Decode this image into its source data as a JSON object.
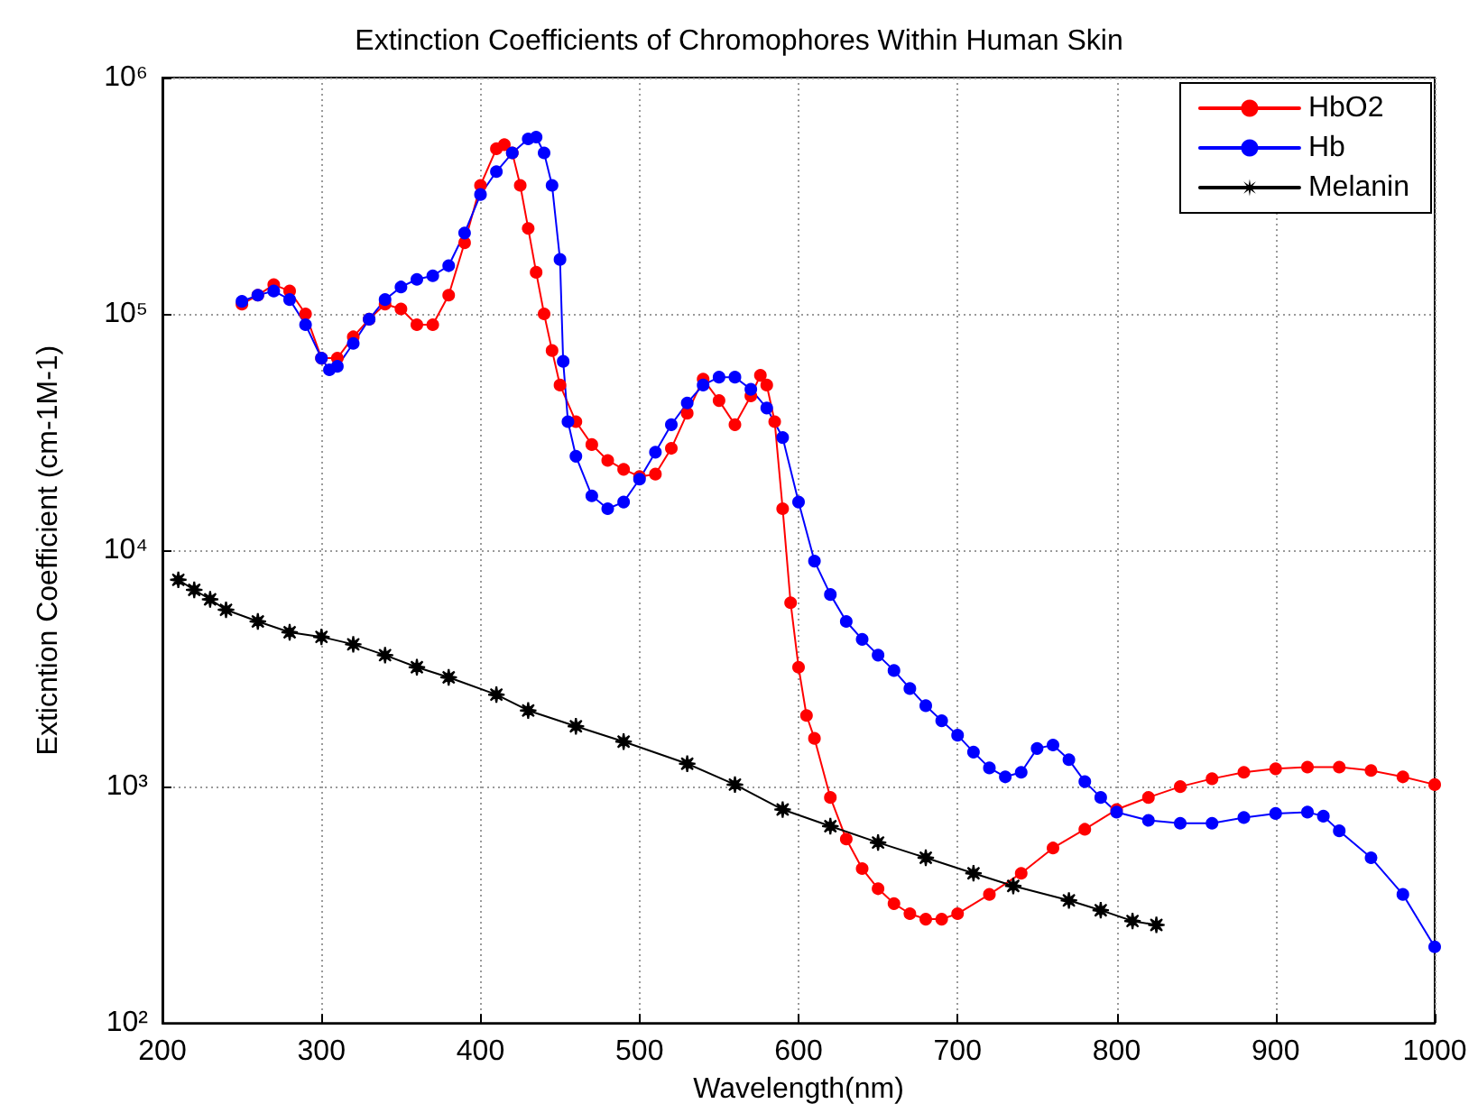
{
  "chart_data": {
    "type": "line",
    "title": "Extinction Coefficients of Chromophores Within Human Skin",
    "xlabel": "Wavelength(nm)",
    "ylabel": "Exticntion Coefficient (cm-1M-1)",
    "log": "y",
    "grid": true,
    "legend": "top right",
    "line_style": "solid",
    "xlim": [
      200,
      1000
    ],
    "xticks": [
      200,
      300,
      400,
      500,
      600,
      700,
      800,
      900,
      1000
    ],
    "ylim": [
      100,
      1000000
    ],
    "yticks": [
      {
        "value": 100,
        "label": "10²"
      },
      {
        "value": 1000,
        "label": "10³"
      },
      {
        "value": 10000,
        "label": "10⁴"
      },
      {
        "value": 100000,
        "label": "10⁵"
      },
      {
        "value": 1000000,
        "label": "10⁶"
      }
    ],
    "series": [
      {
        "name": "HbO2",
        "color": "#ff0000",
        "marker": "circle",
        "x": [
          250,
          260,
          270,
          280,
          290,
          300,
          310,
          320,
          330,
          340,
          350,
          360,
          370,
          380,
          390,
          400,
          410,
          415,
          420,
          425,
          430,
          435,
          440,
          445,
          450,
          460,
          470,
          480,
          490,
          500,
          510,
          520,
          530,
          540,
          550,
          560,
          570,
          576,
          580,
          585,
          590,
          595,
          600,
          605,
          610,
          620,
          630,
          640,
          650,
          660,
          670,
          680,
          690,
          700,
          720,
          740,
          760,
          780,
          800,
          820,
          840,
          860,
          880,
          900,
          920,
          940,
          960,
          980,
          1000
        ],
        "values": [
          110000,
          120000,
          133000,
          125000,
          100000,
          65000,
          65000,
          80000,
          95000,
          110000,
          105000,
          90000,
          90000,
          120000,
          200000,
          350000,
          500000,
          520000,
          480000,
          350000,
          230000,
          150000,
          100000,
          70000,
          50000,
          35000,
          28000,
          24000,
          22000,
          20500,
          21000,
          27000,
          38000,
          53000,
          43000,
          34000,
          45000,
          55000,
          50000,
          35000,
          15000,
          6000,
          3200,
          2000,
          1600,
          900,
          600,
          450,
          370,
          320,
          290,
          275,
          275,
          290,
          350,
          430,
          550,
          660,
          800,
          900,
          1000,
          1080,
          1150,
          1190,
          1210,
          1210,
          1170,
          1100,
          1020
        ]
      },
      {
        "name": "Hb",
        "color": "#0000ff",
        "marker": "circle",
        "x": [
          250,
          260,
          270,
          280,
          290,
          300,
          305,
          310,
          320,
          330,
          340,
          350,
          360,
          370,
          380,
          390,
          400,
          410,
          420,
          430,
          435,
          440,
          445,
          450,
          452,
          455,
          460,
          470,
          480,
          490,
          500,
          510,
          520,
          530,
          540,
          550,
          560,
          570,
          580,
          590,
          600,
          610,
          620,
          630,
          640,
          650,
          660,
          670,
          680,
          690,
          700,
          710,
          720,
          730,
          740,
          750,
          760,
          770,
          780,
          790,
          800,
          820,
          840,
          860,
          880,
          900,
          920,
          930,
          940,
          960,
          980,
          1000
        ],
        "values": [
          113000,
          120000,
          125000,
          115000,
          90000,
          65000,
          58000,
          60000,
          75000,
          95000,
          115000,
          130000,
          140000,
          145000,
          160000,
          220000,
          320000,
          400000,
          480000,
          550000,
          560000,
          480000,
          350000,
          170000,
          63000,
          35000,
          25000,
          17000,
          15000,
          16000,
          20000,
          26000,
          34000,
          42000,
          50000,
          54000,
          54000,
          48000,
          40000,
          30000,
          16000,
          9000,
          6500,
          5000,
          4200,
          3600,
          3100,
          2600,
          2200,
          1900,
          1650,
          1400,
          1200,
          1100,
          1150,
          1450,
          1500,
          1300,
          1050,
          900,
          780,
          720,
          700,
          700,
          740,
          770,
          780,
          750,
          650,
          500,
          350,
          210
        ]
      },
      {
        "name": "Melanin",
        "color": "#000000",
        "marker": "star",
        "x": [
          210,
          220,
          230,
          240,
          260,
          280,
          300,
          320,
          340,
          360,
          380,
          410,
          430,
          460,
          490,
          530,
          560,
          590,
          620,
          650,
          680,
          710,
          735,
          770,
          790,
          810,
          825
        ],
        "values": [
          7500,
          6800,
          6200,
          5600,
          5000,
          4500,
          4300,
          4000,
          3600,
          3200,
          2900,
          2450,
          2100,
          1800,
          1550,
          1250,
          1020,
          800,
          680,
          580,
          500,
          430,
          380,
          330,
          300,
          270,
          260
        ]
      }
    ]
  }
}
